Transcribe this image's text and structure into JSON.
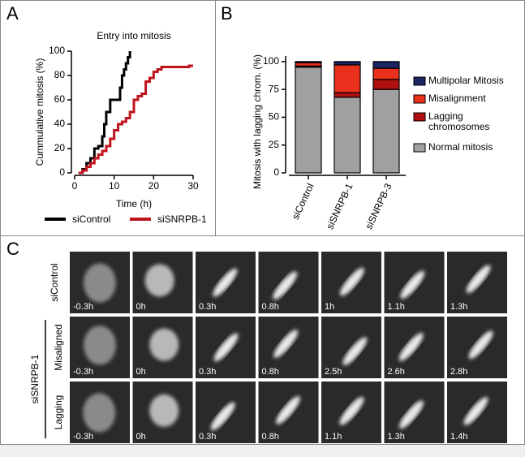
{
  "panels": {
    "a": "A",
    "b": "B",
    "c": "C"
  },
  "chart_data": [
    {
      "type": "line",
      "step": true,
      "title": "Entry into mitosis",
      "x_label": "Time (h)",
      "y_label": "Cummulative mitosis (%)",
      "xlim": [
        0,
        30
      ],
      "xticks": [
        0,
        10,
        20,
        30
      ],
      "ylim": [
        0,
        100
      ],
      "yticks": [
        0,
        20,
        40,
        60,
        80,
        100
      ],
      "series": [
        {
          "name": "siControl",
          "color": "#000000",
          "x": [
            1,
            2,
            3,
            4,
            5,
            6,
            7,
            7.5,
            8,
            9,
            11,
            11.5,
            12,
            12.5,
            13,
            13.5,
            14
          ],
          "values": [
            0,
            3,
            8,
            12,
            20,
            22,
            30,
            40,
            50,
            60,
            60,
            70,
            80,
            85,
            90,
            95,
            100
          ]
        },
        {
          "name": "siSNRPB-1",
          "color": "#c0141c",
          "x": [
            1,
            2,
            3,
            4,
            5,
            6,
            7,
            8,
            9,
            10,
            11,
            12,
            13,
            14,
            15,
            16,
            17,
            18,
            19,
            20,
            21,
            22,
            28,
            29,
            30
          ],
          "values": [
            0,
            2,
            5,
            8,
            12,
            15,
            18,
            22,
            28,
            35,
            40,
            42,
            45,
            50,
            60,
            63,
            65,
            75,
            78,
            83,
            85,
            87,
            87,
            88,
            88
          ]
        }
      ]
    },
    {
      "type": "stacked_bar",
      "y_label": "Mitosis with lagging chrom. (%)",
      "categories": [
        "siControl",
        "siSNRPB-1",
        "siSNRPB-3"
      ],
      "ylim": [
        0,
        105
      ],
      "yticks": [
        0,
        25,
        50,
        75,
        100
      ],
      "series": [
        {
          "name": "Normal mitosis",
          "color": "#a0a0a0",
          "values": [
            95,
            68,
            75
          ]
        },
        {
          "name": "Lagging chromosomes",
          "color": "#b01010",
          "values": [
            1,
            4,
            9
          ]
        },
        {
          "name": "Misalignment",
          "color": "#e8301c",
          "values": [
            3,
            25,
            10
          ]
        },
        {
          "name": "Multipolar Mitosis",
          "color": "#1a2460",
          "values": [
            1,
            3,
            6
          ]
        }
      ]
    }
  ],
  "panel_c": {
    "group_label": "siSNRPB-1",
    "rows": [
      {
        "label": "siControl",
        "times": [
          "-0.3h",
          "0h",
          "0.3h",
          "0.8h",
          "1h",
          "1.1h",
          "1.3h"
        ]
      },
      {
        "label": "Misaligned",
        "times": [
          "-0.3h",
          "0h",
          "0.3h",
          "0.8h",
          "2.5h",
          "2.6h",
          "2.8h"
        ]
      },
      {
        "label": "Lagging",
        "times": [
          "-0.3h",
          "0h",
          "0.3h",
          "0.8h",
          "1.1h",
          "1.3h",
          "1.4h"
        ]
      }
    ]
  }
}
